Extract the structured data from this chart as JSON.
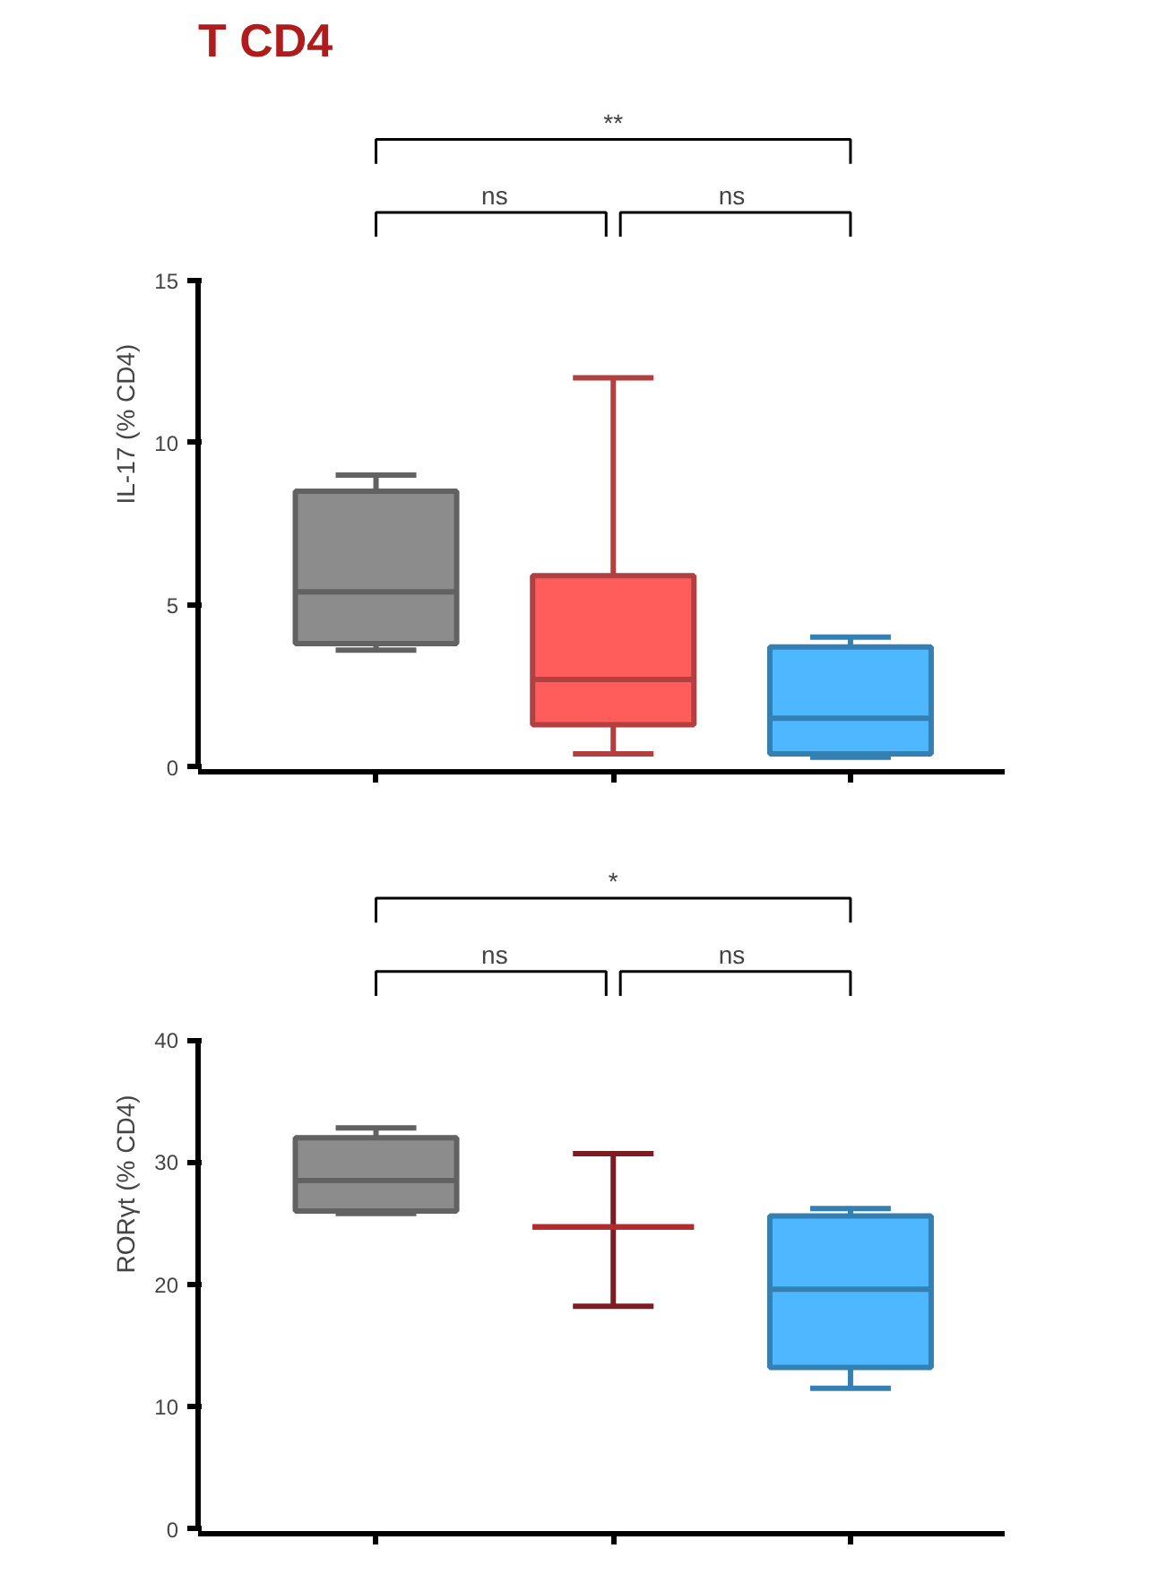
{
  "chart_data": [
    {
      "type": "box",
      "title": "T CD4",
      "ylabel": "IL-17 (% CD4)",
      "categories": [
        null,
        null,
        null
      ],
      "boxes": [
        {
          "low": 3.6,
          "q1": 3.8,
          "median": 5.4,
          "q3": 8.5,
          "high": 9.0
        },
        {
          "low": 0.4,
          "q1": 1.3,
          "median": 2.7,
          "q3": 5.9,
          "high": 12.0
        },
        {
          "low": 0.3,
          "q1": 0.4,
          "median": 1.5,
          "q3": 3.7,
          "high": 4.0
        }
      ],
      "colors": [
        "#8c8c8c",
        "#ff5c5c",
        "#4db8ff"
      ],
      "ylim": [
        0,
        15
      ],
      "yticks": [
        0,
        5,
        10,
        15
      ],
      "grid": false,
      "annotations": [
        "**",
        "ns",
        "ns"
      ]
    },
    {
      "type": "box",
      "ylabel": "RORγt (% CD4)",
      "categories": [
        null,
        null,
        null
      ],
      "boxes": [
        {
          "low": 25.8,
          "q1": 26.0,
          "median": 28.5,
          "q3": 32.0,
          "high": 32.8
        },
        {
          "low": 18.2,
          "q1": 24.7,
          "median": 24.7,
          "q3": 24.7,
          "high": 30.7
        },
        {
          "low": 11.5,
          "q1": 13.2,
          "median": 19.6,
          "q3": 25.6,
          "high": 26.2
        }
      ],
      "colors": [
        "#8c8c8c",
        "#b02a30",
        "#4db8ff"
      ],
      "ylim": [
        0,
        40
      ],
      "yticks": [
        0,
        10,
        20,
        30,
        40
      ],
      "grid": false,
      "annotations": [
        "*",
        "ns",
        "ns"
      ]
    }
  ]
}
